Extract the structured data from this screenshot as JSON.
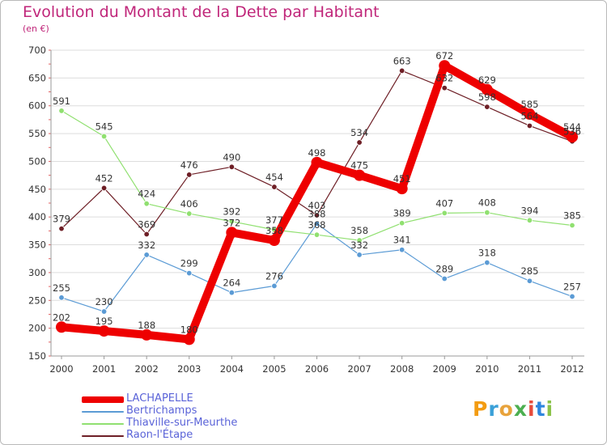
{
  "title": "Evolution du Montant de la Dette par Habitant",
  "unit": "(en €)",
  "logo": {
    "text": "Proxiti",
    "colors": [
      "#f39c12",
      "#3aa0d8",
      "#e8a33c",
      "#4caf50",
      "#e74c3c",
      "#2e86de",
      "#8bc34a"
    ]
  },
  "chart_data": {
    "type": "line",
    "x": [
      "2000",
      "2001",
      "2002",
      "2003",
      "2004",
      "2005",
      "2006",
      "2007",
      "2008",
      "2009",
      "2010",
      "2011",
      "2012"
    ],
    "y_ticks": [
      150,
      200,
      250,
      300,
      350,
      400,
      450,
      500,
      550,
      600,
      650,
      700
    ],
    "ylim": [
      150,
      700
    ],
    "grid": "horizontal",
    "legend_position": "bottom-left",
    "series": [
      {
        "name": "Raon-l'Étape",
        "color": "#6e1f26",
        "values": [
          379,
          452,
          369,
          476,
          490,
          454,
          403,
          534,
          663,
          632,
          598,
          564,
          536
        ]
      },
      {
        "name": "Bertrichamps",
        "color": "#5b9bd5",
        "values": [
          255,
          230,
          332,
          299,
          264,
          276,
          388,
          332,
          341,
          289,
          318,
          285,
          257
        ]
      },
      {
        "name": "Thiaville-sur-Meurthe",
        "color": "#90e070",
        "values": [
          591,
          545,
          424,
          406,
          392,
          377,
          368,
          358,
          389,
          407,
          408,
          394,
          385
        ]
      },
      {
        "name": "LACHAPELLE",
        "color": "#ee0000",
        "values": [
          202,
          195,
          188,
          180,
          372,
          358,
          498,
          475,
          451,
          672,
          629,
          585,
          544
        ]
      }
    ]
  },
  "legend": [
    {
      "label": "LACHAPELLE",
      "color": "#ee0000",
      "thick": true
    },
    {
      "label": "Bertrichamps",
      "color": "#5b9bd5",
      "thick": false
    },
    {
      "label": "Thiaville-sur-Meurthe",
      "color": "#90e070",
      "thick": false
    },
    {
      "label": "Raon-l'Étape",
      "color": "#6e1f26",
      "thick": false
    }
  ]
}
